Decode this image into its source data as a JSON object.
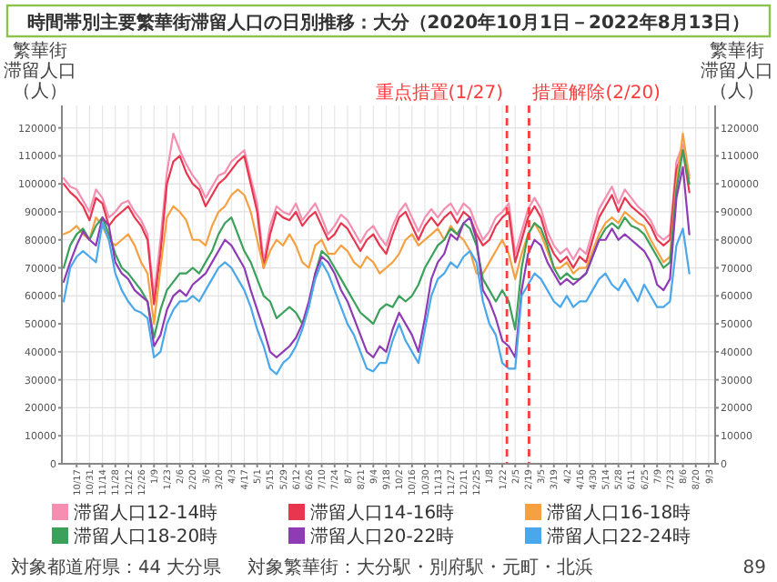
{
  "chart_data": {
    "type": "line",
    "title": "時間帯別主要繁華街滞留人口の日別推移：大分（2020年10月1日－2022年8月13日）",
    "ylabel": "繁華街滞留人口（人）",
    "y2label": "繁華街滞留人口（人）",
    "x": [
      "2020-10-03",
      "2020-10-10",
      "2020-10-17",
      "2020-10-24",
      "2020-10-31",
      "2020-11-07",
      "2020-11-14",
      "2020-11-21",
      "2020-11-28",
      "2020-12-05",
      "2020-12-12",
      "2020-12-19",
      "2020-12-26",
      "2021-01-02",
      "2021-01-09",
      "2021-01-16",
      "2021-01-23",
      "2021-01-30",
      "2021-02-06",
      "2021-02-13",
      "2021-02-20",
      "2021-02-27",
      "2021-03-06",
      "2021-03-13",
      "2021-03-20",
      "2021-03-27",
      "2021-04-03",
      "2021-04-10",
      "2021-04-17",
      "2021-04-24",
      "2021-05-01",
      "2021-05-08",
      "2021-05-15",
      "2021-05-22",
      "2021-05-29",
      "2021-06-05",
      "2021-06-12",
      "2021-06-19",
      "2021-06-26",
      "2021-07-03",
      "2021-07-10",
      "2021-07-17",
      "2021-07-24",
      "2021-07-31",
      "2021-08-07",
      "2021-08-14",
      "2021-08-21",
      "2021-08-28",
      "2021-09-04",
      "2021-09-11",
      "2021-09-18",
      "2021-09-25",
      "2021-10-02",
      "2021-10-09",
      "2021-10-16",
      "2021-10-23",
      "2021-10-30",
      "2021-11-06",
      "2021-11-13",
      "2021-11-20",
      "2021-11-27",
      "2021-12-04",
      "2021-12-11",
      "2021-12-18",
      "2021-12-25",
      "2022-01-01",
      "2022-01-08",
      "2022-01-15",
      "2022-01-22",
      "2022-01-29",
      "2022-02-05",
      "2022-02-12",
      "2022-02-19",
      "2022-02-26",
      "2022-03-05",
      "2022-03-12",
      "2022-03-19",
      "2022-03-26",
      "2022-04-02",
      "2022-04-09",
      "2022-04-16",
      "2022-04-23",
      "2022-04-30",
      "2022-05-07",
      "2022-05-14",
      "2022-05-21",
      "2022-05-28",
      "2022-06-04",
      "2022-06-11",
      "2022-06-18",
      "2022-06-25",
      "2022-07-02",
      "2022-07-09",
      "2022-07-16",
      "2022-07-23",
      "2022-07-30",
      "2022-08-06",
      "2022-08-13"
    ],
    "series": [
      {
        "name": "滞留人口12-14時",
        "color": "#f48fb1",
        "values": [
          102000,
          99000,
          98000,
          94000,
          90000,
          98000,
          95000,
          88000,
          90000,
          93000,
          94000,
          90000,
          87000,
          82000,
          60000,
          80000,
          104000,
          118000,
          112000,
          107000,
          103000,
          100000,
          95000,
          99000,
          103000,
          104000,
          108000,
          110000,
          112000,
          102000,
          93000,
          72000,
          85000,
          92000,
          90000,
          89000,
          93000,
          87000,
          90000,
          93000,
          88000,
          82000,
          85000,
          89000,
          87000,
          83000,
          79000,
          83000,
          85000,
          81000,
          78000,
          85000,
          90000,
          93000,
          88000,
          83000,
          88000,
          91000,
          88000,
          91000,
          93000,
          89000,
          93000,
          91000,
          85000,
          80000,
          83000,
          88000,
          90000,
          93000,
          75000,
          83000,
          91000,
          95000,
          91000,
          83000,
          78000,
          75000,
          77000,
          73000,
          77000,
          75000,
          83000,
          91000,
          95000,
          99000,
          93000,
          98000,
          95000,
          92000,
          90000,
          87000,
          82000,
          80000,
          82000,
          108000,
          114000,
          103000
        ]
      },
      {
        "name": "滞留人口14-16時",
        "color": "#e8364f",
        "values": [
          100000,
          97000,
          95000,
          92000,
          87000,
          95000,
          93000,
          85000,
          88000,
          90000,
          92000,
          88000,
          85000,
          80000,
          57000,
          75000,
          100000,
          108000,
          110000,
          104000,
          100000,
          98000,
          92000,
          96000,
          100000,
          102000,
          105000,
          108000,
          110000,
          100000,
          90000,
          70000,
          82000,
          90000,
          88000,
          87000,
          90000,
          85000,
          88000,
          90000,
          85000,
          80000,
          82000,
          86000,
          84000,
          80000,
          76000,
          80000,
          82000,
          78000,
          75000,
          82000,
          88000,
          90000,
          85000,
          80000,
          85000,
          88000,
          85000,
          88000,
          90000,
          86000,
          90000,
          88000,
          82000,
          78000,
          80000,
          85000,
          88000,
          90000,
          72000,
          80000,
          88000,
          92000,
          88000,
          80000,
          75000,
          72000,
          74000,
          70000,
          74000,
          72000,
          80000,
          88000,
          92000,
          96000,
          90000,
          95000,
          92000,
          90000,
          88000,
          85000,
          80000,
          78000,
          80000,
          105000,
          112000,
          97000
        ]
      },
      {
        "name": "滞留人口16-18時",
        "color": "#f5a142",
        "values": [
          82000,
          83000,
          85000,
          82000,
          80000,
          88000,
          85000,
          80000,
          78000,
          80000,
          82000,
          78000,
          72000,
          68000,
          50000,
          70000,
          88000,
          92000,
          90000,
          87000,
          80000,
          80000,
          78000,
          85000,
          90000,
          92000,
          96000,
          98000,
          96000,
          90000,
          80000,
          70000,
          76000,
          80000,
          78000,
          82000,
          78000,
          72000,
          70000,
          78000,
          80000,
          75000,
          75000,
          78000,
          76000,
          72000,
          70000,
          74000,
          72000,
          68000,
          70000,
          72000,
          75000,
          80000,
          82000,
          78000,
          80000,
          82000,
          84000,
          80000,
          85000,
          82000,
          80000,
          76000,
          68000,
          68000,
          72000,
          76000,
          80000,
          75000,
          66000,
          75000,
          82000,
          86000,
          82000,
          76000,
          70000,
          70000,
          72000,
          68000,
          70000,
          70000,
          76000,
          82000,
          86000,
          88000,
          86000,
          90000,
          88000,
          86000,
          85000,
          80000,
          76000,
          72000,
          74000,
          100000,
          118000,
          102000
        ]
      },
      {
        "name": "滞留人口18-20時",
        "color": "#3aa05a",
        "values": [
          70000,
          78000,
          82000,
          84000,
          80000,
          85000,
          88000,
          82000,
          75000,
          70000,
          68000,
          65000,
          62000,
          58000,
          45000,
          55000,
          62000,
          65000,
          68000,
          68000,
          70000,
          68000,
          72000,
          76000,
          82000,
          86000,
          88000,
          82000,
          76000,
          72000,
          66000,
          60000,
          58000,
          52000,
          54000,
          56000,
          54000,
          50000,
          56000,
          68000,
          76000,
          74000,
          70000,
          66000,
          62000,
          58000,
          54000,
          52000,
          50000,
          55000,
          57000,
          56000,
          60000,
          58000,
          60000,
          64000,
          70000,
          74000,
          78000,
          80000,
          84000,
          82000,
          86000,
          84000,
          78000,
          66000,
          62000,
          58000,
          62000,
          58000,
          48000,
          70000,
          82000,
          86000,
          84000,
          78000,
          70000,
          66000,
          68000,
          66000,
          66000,
          68000,
          74000,
          80000,
          84000,
          86000,
          84000,
          88000,
          85000,
          84000,
          82000,
          78000,
          74000,
          70000,
          72000,
          98000,
          112000,
          100000
        ]
      },
      {
        "name": "滞留人口20-22時",
        "color": "#8e3bb5",
        "values": [
          65000,
          72000,
          78000,
          83000,
          80000,
          78000,
          88000,
          85000,
          72000,
          68000,
          66000,
          62000,
          60000,
          58000,
          42000,
          46000,
          55000,
          60000,
          62000,
          60000,
          64000,
          66000,
          68000,
          72000,
          76000,
          80000,
          78000,
          74000,
          70000,
          62000,
          55000,
          48000,
          40000,
          38000,
          40000,
          42000,
          45000,
          50000,
          58000,
          68000,
          74000,
          72000,
          68000,
          62000,
          58000,
          52000,
          46000,
          40000,
          38000,
          42000,
          40000,
          48000,
          54000,
          50000,
          46000,
          40000,
          52000,
          66000,
          72000,
          75000,
          82000,
          80000,
          86000,
          88000,
          80000,
          62000,
          58000,
          52000,
          44000,
          42000,
          38000,
          62000,
          75000,
          80000,
          78000,
          72000,
          68000,
          64000,
          66000,
          64000,
          66000,
          68000,
          74000,
          80000,
          80000,
          84000,
          80000,
          82000,
          80000,
          78000,
          76000,
          72000,
          64000,
          62000,
          66000,
          95000,
          106000,
          82000
        ]
      },
      {
        "name": "滞留人口22-24時",
        "color": "#4aa8ea",
        "values": [
          58000,
          70000,
          74000,
          76000,
          74000,
          72000,
          86000,
          80000,
          68000,
          62000,
          58000,
          55000,
          54000,
          52000,
          38000,
          40000,
          50000,
          55000,
          58000,
          58000,
          60000,
          58000,
          62000,
          66000,
          70000,
          72000,
          70000,
          66000,
          62000,
          56000,
          48000,
          42000,
          34000,
          32000,
          36000,
          38000,
          42000,
          48000,
          56000,
          66000,
          72000,
          68000,
          62000,
          56000,
          50000,
          46000,
          40000,
          34000,
          33000,
          36000,
          36000,
          44000,
          50000,
          44000,
          40000,
          36000,
          48000,
          60000,
          66000,
          68000,
          72000,
          70000,
          74000,
          76000,
          72000,
          58000,
          50000,
          46000,
          36000,
          34000,
          34000,
          60000,
          64000,
          68000,
          66000,
          62000,
          58000,
          56000,
          60000,
          56000,
          58000,
          58000,
          62000,
          66000,
          68000,
          64000,
          62000,
          66000,
          62000,
          58000,
          64000,
          60000,
          56000,
          56000,
          58000,
          78000,
          84000,
          68000
        ]
      }
    ],
    "xlim": [
      "2020-10-01",
      "2022-09-10"
    ],
    "xticks": [
      {
        "value": "2020-10-17",
        "label": "10/17"
      },
      {
        "value": "2020-10-31",
        "label": "10/31"
      },
      {
        "value": "2020-11-14",
        "label": "11/14"
      },
      {
        "value": "2020-11-28",
        "label": "11/28"
      },
      {
        "value": "2020-12-12",
        "label": "12/12"
      },
      {
        "value": "2020-12-26",
        "label": "12/26"
      },
      {
        "value": "2021-01-09",
        "label": "1/9"
      },
      {
        "value": "2021-01-23",
        "label": "1/23"
      },
      {
        "value": "2021-02-06",
        "label": "2/6"
      },
      {
        "value": "2021-02-20",
        "label": "2/20"
      },
      {
        "value": "2021-03-06",
        "label": "3/6"
      },
      {
        "value": "2021-03-20",
        "label": "3/20"
      },
      {
        "value": "2021-04-03",
        "label": "4/3"
      },
      {
        "value": "2021-04-17",
        "label": "4/17"
      },
      {
        "value": "2021-05-01",
        "label": "5/1"
      },
      {
        "value": "2021-05-15",
        "label": "5/15"
      },
      {
        "value": "2021-05-29",
        "label": "5/29"
      },
      {
        "value": "2021-06-12",
        "label": "6/12"
      },
      {
        "value": "2021-06-26",
        "label": "6/26"
      },
      {
        "value": "2021-07-10",
        "label": "7/10"
      },
      {
        "value": "2021-07-24",
        "label": "7/24"
      },
      {
        "value": "2021-08-07",
        "label": "8/7"
      },
      {
        "value": "2021-08-21",
        "label": "8/21"
      },
      {
        "value": "2021-09-04",
        "label": "9/4"
      },
      {
        "value": "2021-09-18",
        "label": "9/18"
      },
      {
        "value": "2021-10-02",
        "label": "10/2"
      },
      {
        "value": "2021-10-16",
        "label": "10/16"
      },
      {
        "value": "2021-10-30",
        "label": "10/30"
      },
      {
        "value": "2021-11-13",
        "label": "11/13"
      },
      {
        "value": "2021-11-27",
        "label": "11/27"
      },
      {
        "value": "2021-12-11",
        "label": "12/11"
      },
      {
        "value": "2021-12-25",
        "label": "12/25"
      },
      {
        "value": "2022-01-08",
        "label": "1/8"
      },
      {
        "value": "2022-01-22",
        "label": "1/22"
      },
      {
        "value": "2022-02-05",
        "label": "2/5"
      },
      {
        "value": "2022-02-19",
        "label": "2/19"
      },
      {
        "value": "2022-03-05",
        "label": "3/5"
      },
      {
        "value": "2022-03-19",
        "label": "3/19"
      },
      {
        "value": "2022-04-02",
        "label": "4/2"
      },
      {
        "value": "2022-04-16",
        "label": "4/16"
      },
      {
        "value": "2022-04-30",
        "label": "4/30"
      },
      {
        "value": "2022-05-14",
        "label": "5/14"
      },
      {
        "value": "2022-05-28",
        "label": "5/28"
      },
      {
        "value": "2022-06-11",
        "label": "6/11"
      },
      {
        "value": "2022-06-25",
        "label": "6/25"
      },
      {
        "value": "2022-07-09",
        "label": "7/9"
      },
      {
        "value": "2022-07-23",
        "label": "7/23"
      },
      {
        "value": "2022-08-06",
        "label": "8/6"
      },
      {
        "value": "2022-08-20",
        "label": "8/20"
      },
      {
        "value": "2022-09-03",
        "label": "9/3"
      }
    ],
    "ylim": [
      0,
      128000
    ],
    "yticks": [
      0,
      10000,
      20000,
      30000,
      40000,
      50000,
      60000,
      70000,
      80000,
      90000,
      100000,
      110000,
      120000
    ],
    "y2lim": [
      0,
      128000
    ],
    "y2ticks": [
      0,
      10000,
      20000,
      30000,
      40000,
      50000,
      60000,
      70000,
      80000,
      90000,
      100000,
      110000,
      120000
    ],
    "ref_lines": [
      {
        "axis": "x",
        "value": "2022-01-27",
        "label": "重点措置(1/27)",
        "color": "#ff3b3b",
        "line_style": "dashed"
      },
      {
        "axis": "x",
        "value": "2022-02-20",
        "label": "措置解除(2/20)",
        "color": "#ff3b3b",
        "line_style": "dashed"
      }
    ],
    "grid": true,
    "legend": "bottom",
    "annotations": [
      "対象都道府県：44 大分県",
      "対象繁華街：大分駅・別府駅・元町・北浜",
      "89"
    ]
  }
}
